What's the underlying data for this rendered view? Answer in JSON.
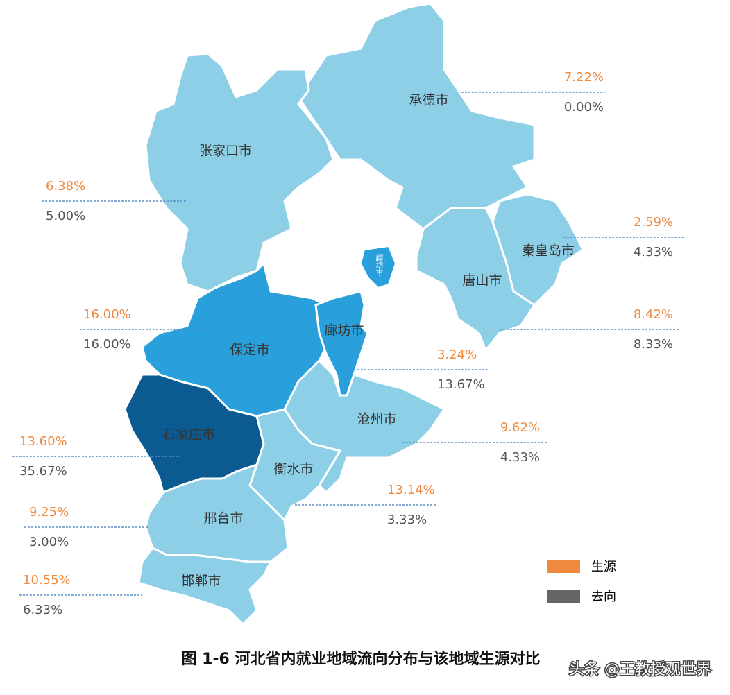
{
  "regions": [
    {
      "name": "承德市",
      "source": 7.22,
      "source_label": "7.22%",
      "destination": 0.0,
      "destination_label": "0.00%"
    },
    {
      "name": "张家口市",
      "source": 6.38,
      "source_label": "6.38%",
      "destination": 5.0,
      "destination_label": "5.00%"
    },
    {
      "name": "秦皇岛市",
      "source": 2.59,
      "source_label": "2.59%",
      "destination": 4.33,
      "destination_label": "4.33%"
    },
    {
      "name": "唐山市",
      "source": 8.42,
      "source_label": "8.42%",
      "destination": 8.33,
      "destination_label": "8.33%"
    },
    {
      "name": "保定市",
      "source": 16.0,
      "source_label": "16.00%",
      "destination": 16.0,
      "destination_label": "16.00%"
    },
    {
      "name": "廊坊市",
      "source": 3.24,
      "source_label": "3.24%",
      "destination": 13.67,
      "destination_label": "13.67%"
    },
    {
      "name": "沧州市",
      "source": 9.62,
      "source_label": "9.62%",
      "destination": 4.33,
      "destination_label": "4.33%"
    },
    {
      "name": "石家庄市",
      "source": 13.6,
      "source_label": "13.60%",
      "destination": 35.67,
      "destination_label": "35.67%"
    },
    {
      "name": "衡水市",
      "source": 13.14,
      "source_label": "13.14%",
      "destination": 3.33,
      "destination_label": "3.33%"
    },
    {
      "name": "邢台市",
      "source": 9.25,
      "source_label": "9.25%",
      "destination": 3.0,
      "destination_label": "3.00%"
    },
    {
      "name": "邯郸市",
      "source": 10.55,
      "source_label": "10.55%",
      "destination": 6.33,
      "destination_label": "6.33%"
    }
  ],
  "legend": {
    "source": "生源",
    "destination": "去向"
  },
  "caption": "图 1-6  河北省内就业地域流向分布与该地域生源对比",
  "watermark": "头条 @王教授观世界"
}
